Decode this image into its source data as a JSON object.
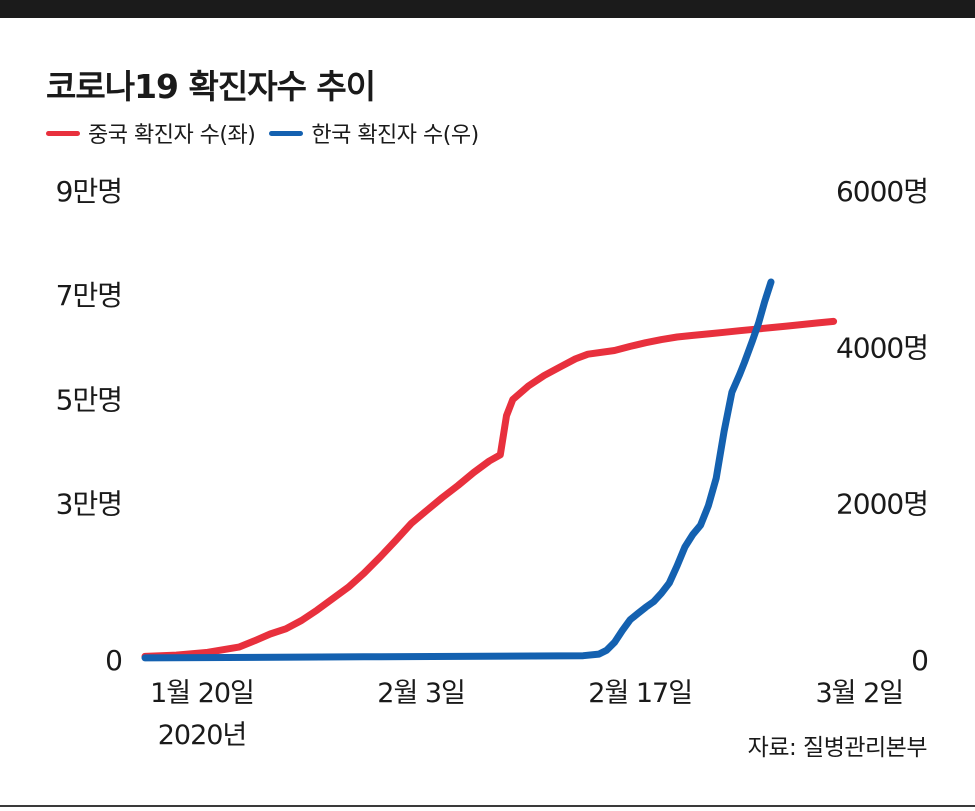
{
  "title": "코로나19 확진자수 추이",
  "source": "자료: 질병관리본부",
  "colors": {
    "china": "#e8303d",
    "korea": "#1461b0"
  },
  "chart_data": {
    "type": "line",
    "title": "코로나19 확진자수 추이",
    "legend": [
      {
        "name": "중국 확진자 수(좌)",
        "color": "#e8303d",
        "axis": "left"
      },
      {
        "name": "한국 확진자 수(우)",
        "color": "#1461b0",
        "axis": "right"
      }
    ],
    "x_ticks": [
      {
        "day": 0,
        "label": "1월 20일",
        "sublabel": "2020년"
      },
      {
        "day": 14,
        "label": "2월 3일"
      },
      {
        "day": 28,
        "label": "2월 17일"
      },
      {
        "day": 42,
        "label": "3월 2일"
      }
    ],
    "y_left": {
      "ticks": [
        {
          "value": 0,
          "label": "0"
        },
        {
          "value": 30000,
          "label": "3만명"
        },
        {
          "value": 50000,
          "label": "5만명"
        },
        {
          "value": 70000,
          "label": "7만명"
        },
        {
          "value": 90000,
          "label": "9만명"
        }
      ],
      "range": [
        0,
        90000
      ]
    },
    "y_right": {
      "ticks": [
        {
          "value": 0,
          "label": "0"
        },
        {
          "value": 2000,
          "label": "2000명"
        },
        {
          "value": 4000,
          "label": "4000명"
        },
        {
          "value": 6000,
          "label": "6000명"
        }
      ],
      "range": [
        0,
        6000
      ]
    },
    "series": [
      {
        "name": "중국 확진자 수(좌)",
        "axis": "left",
        "color": "#e8303d",
        "points": [
          [
            0,
            300
          ],
          [
            2,
            550
          ],
          [
            4,
            1100
          ],
          [
            6,
            2100
          ],
          [
            7,
            3300
          ],
          [
            8,
            4600
          ],
          [
            9,
            5600
          ],
          [
            10,
            7200
          ],
          [
            11,
            9200
          ],
          [
            12,
            11400
          ],
          [
            13,
            13600
          ],
          [
            14,
            16300
          ],
          [
            15,
            19300
          ],
          [
            16,
            22500
          ],
          [
            17,
            25800
          ],
          [
            18,
            28300
          ],
          [
            19,
            30800
          ],
          [
            20,
            33100
          ],
          [
            21,
            35600
          ],
          [
            22,
            37800
          ],
          [
            22.7,
            39000
          ],
          [
            23.1,
            46500
          ],
          [
            23.5,
            49600
          ],
          [
            24.5,
            52200
          ],
          [
            25.5,
            54200
          ],
          [
            26.5,
            55800
          ],
          [
            27.5,
            57400
          ],
          [
            28.3,
            58300
          ],
          [
            30,
            59000
          ],
          [
            31,
            59800
          ],
          [
            32,
            60500
          ],
          [
            33,
            61100
          ],
          [
            34,
            61600
          ],
          [
            35,
            61900
          ],
          [
            36,
            62200
          ],
          [
            37,
            62500
          ],
          [
            38,
            62800
          ],
          [
            39,
            63100
          ],
          [
            40,
            63400
          ],
          [
            41,
            63700
          ],
          [
            42,
            64000
          ],
          [
            43,
            64300
          ],
          [
            44,
            64600
          ]
        ]
      },
      {
        "name": "한국 확진자 수(우)",
        "axis": "right",
        "color": "#1461b0",
        "points": [
          [
            0,
            1
          ],
          [
            14,
            15
          ],
          [
            28,
            30
          ],
          [
            29,
            50
          ],
          [
            29.5,
            100
          ],
          [
            30,
            200
          ],
          [
            30.5,
            350
          ],
          [
            31,
            490
          ],
          [
            31.5,
            570
          ],
          [
            32,
            650
          ],
          [
            32.5,
            720
          ],
          [
            33,
            830
          ],
          [
            33.5,
            960
          ],
          [
            34,
            1180
          ],
          [
            34.5,
            1420
          ],
          [
            35,
            1580
          ],
          [
            35.5,
            1700
          ],
          [
            36,
            1950
          ],
          [
            36.5,
            2300
          ],
          [
            37,
            2900
          ],
          [
            37.5,
            3400
          ],
          [
            38,
            3630
          ],
          [
            38.3,
            3780
          ],
          [
            38.8,
            4050
          ],
          [
            39.2,
            4280
          ],
          [
            39.6,
            4560
          ],
          [
            40,
            4810
          ]
        ]
      }
    ]
  }
}
